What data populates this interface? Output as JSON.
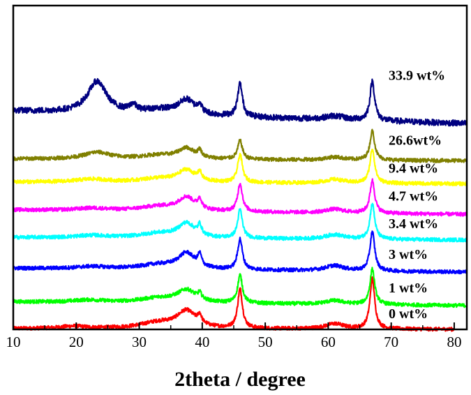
{
  "chart_data": {
    "type": "line",
    "title": "",
    "xlabel": "2theta / degree",
    "ylabel": "",
    "xlim": [
      10,
      82
    ],
    "ylim": [
      0,
      8.7
    ],
    "x_ticks": [
      10,
      20,
      30,
      40,
      50,
      60,
      70,
      80
    ],
    "x_tick_labels": [
      "10",
      "20",
      "30",
      "40",
      "50",
      "60",
      "70",
      "80"
    ],
    "y_axis_ticks_shown": false,
    "grid": false,
    "legend": "inline labels at right",
    "peak_positions_deg": [
      23.3,
      29.0,
      37.5,
      39.6,
      46.0,
      61.0,
      67.0
    ],
    "series": [
      {
        "name": "0 wt%",
        "color": "#ff0000",
        "offset": 0.0,
        "x_end": 80.0,
        "baseline_start": 0.02,
        "baseline_end": 0.0,
        "noise": 0.05,
        "peaks": [
          {
            "center": 19.5,
            "height": 0.06,
            "width": 2.5
          },
          {
            "center": 33.0,
            "height": 0.16,
            "width": 3.5
          },
          {
            "center": 37.5,
            "height": 0.45,
            "width": 1.8
          },
          {
            "center": 39.6,
            "height": 0.22,
            "width": 0.35
          },
          {
            "center": 46.0,
            "height": 1.05,
            "width": 0.45
          },
          {
            "center": 61.0,
            "height": 0.14,
            "width": 1.8
          },
          {
            "center": 67.0,
            "height": 1.35,
            "width": 0.45
          }
        ]
      },
      {
        "name": "1 wt%",
        "color": "#00ff00",
        "offset": 0.74,
        "x_end": 82.0,
        "baseline_start": 0.0,
        "baseline_end": -0.1,
        "noise": 0.05,
        "peaks": [
          {
            "center": 22.0,
            "height": 0.06,
            "width": 3.0
          },
          {
            "center": 33.0,
            "height": 0.12,
            "width": 3.5
          },
          {
            "center": 37.5,
            "height": 0.33,
            "width": 1.8
          },
          {
            "center": 39.6,
            "height": 0.16,
            "width": 0.35
          },
          {
            "center": 46.0,
            "height": 0.75,
            "width": 0.45
          },
          {
            "center": 61.0,
            "height": 0.1,
            "width": 1.8
          },
          {
            "center": 67.0,
            "height": 0.95,
            "width": 0.45
          }
        ]
      },
      {
        "name": "3 wt%",
        "color": "#0000ff",
        "offset": 1.64,
        "x_end": 82.0,
        "baseline_start": 0.0,
        "baseline_end": -0.1,
        "noise": 0.05,
        "peaks": [
          {
            "center": 22.5,
            "height": 0.06,
            "width": 3.0
          },
          {
            "center": 33.0,
            "height": 0.12,
            "width": 3.5
          },
          {
            "center": 37.5,
            "height": 0.42,
            "width": 1.6
          },
          {
            "center": 39.6,
            "height": 0.3,
            "width": 0.35
          },
          {
            "center": 46.0,
            "height": 0.82,
            "width": 0.45
          },
          {
            "center": 61.0,
            "height": 0.14,
            "width": 1.8
          },
          {
            "center": 67.0,
            "height": 1.05,
            "width": 0.45
          }
        ]
      },
      {
        "name": "3.4 wt%",
        "color": "#00ffff",
        "offset": 2.47,
        "x_end": 82.0,
        "baseline_start": 0.0,
        "baseline_end": -0.07,
        "noise": 0.05,
        "peaks": [
          {
            "center": 22.5,
            "height": 0.06,
            "width": 3.0
          },
          {
            "center": 33.0,
            "height": 0.12,
            "width": 3.5
          },
          {
            "center": 37.5,
            "height": 0.38,
            "width": 1.6
          },
          {
            "center": 39.6,
            "height": 0.26,
            "width": 0.35
          },
          {
            "center": 46.0,
            "height": 0.76,
            "width": 0.45
          },
          {
            "center": 61.0,
            "height": 0.12,
            "width": 1.8
          },
          {
            "center": 67.0,
            "height": 0.95,
            "width": 0.45
          }
        ]
      },
      {
        "name": "4.7 wt%",
        "color": "#ff00ff",
        "offset": 3.21,
        "x_end": 82.0,
        "baseline_start": 0.0,
        "baseline_end": -0.12,
        "noise": 0.05,
        "peaks": [
          {
            "center": 22.5,
            "height": 0.06,
            "width": 3.0
          },
          {
            "center": 33.0,
            "height": 0.12,
            "width": 3.5
          },
          {
            "center": 37.5,
            "height": 0.36,
            "width": 1.6
          },
          {
            "center": 39.6,
            "height": 0.25,
            "width": 0.35
          },
          {
            "center": 46.0,
            "height": 0.75,
            "width": 0.45
          },
          {
            "center": 61.0,
            "height": 0.1,
            "width": 1.8
          },
          {
            "center": 67.0,
            "height": 0.88,
            "width": 0.45
          }
        ]
      },
      {
        "name": "9.4 wt%",
        "color": "#ffff00",
        "offset": 3.96,
        "x_end": 82.0,
        "baseline_start": 0.0,
        "baseline_end": -0.05,
        "noise": 0.05,
        "peaks": [
          {
            "center": 22.5,
            "height": 0.08,
            "width": 3.0
          },
          {
            "center": 33.0,
            "height": 0.1,
            "width": 3.5
          },
          {
            "center": 37.5,
            "height": 0.32,
            "width": 1.6
          },
          {
            "center": 39.6,
            "height": 0.2,
            "width": 0.35
          },
          {
            "center": 46.0,
            "height": 0.75,
            "width": 0.45
          },
          {
            "center": 61.0,
            "height": 0.1,
            "width": 1.8
          },
          {
            "center": 67.0,
            "height": 0.92,
            "width": 0.45
          }
        ]
      },
      {
        "name": "26.6wt%",
        "color": "#808000",
        "offset": 4.58,
        "x_end": 82.0,
        "baseline_start": 0.0,
        "baseline_end": -0.05,
        "noise": 0.05,
        "peaks": [
          {
            "center": 23.3,
            "height": 0.18,
            "width": 2.5
          },
          {
            "center": 33.0,
            "height": 0.1,
            "width": 3.5
          },
          {
            "center": 37.5,
            "height": 0.28,
            "width": 1.6
          },
          {
            "center": 39.6,
            "height": 0.18,
            "width": 0.35
          },
          {
            "center": 46.0,
            "height": 0.5,
            "width": 0.45
          },
          {
            "center": 61.0,
            "height": 0.08,
            "width": 1.8
          },
          {
            "center": 67.0,
            "height": 0.78,
            "width": 0.45
          }
        ]
      },
      {
        "name": "33.9 wt%",
        "color": "#000080",
        "offset": 5.65,
        "x_end": 82.0,
        "baseline_start": 0.22,
        "baseline_end": -0.12,
        "noise": 0.08,
        "peaks": [
          {
            "center": 23.3,
            "height": 0.85,
            "width": 1.8
          },
          {
            "center": 29.0,
            "height": 0.18,
            "width": 0.6
          },
          {
            "center": 33.0,
            "height": 0.12,
            "width": 3.0
          },
          {
            "center": 37.5,
            "height": 0.4,
            "width": 1.6
          },
          {
            "center": 39.6,
            "height": 0.22,
            "width": 0.35
          },
          {
            "center": 46.0,
            "height": 0.88,
            "width": 0.45
          },
          {
            "center": 61.0,
            "height": 0.1,
            "width": 1.8
          },
          {
            "center": 67.0,
            "height": 1.05,
            "width": 0.45
          }
        ]
      }
    ]
  }
}
